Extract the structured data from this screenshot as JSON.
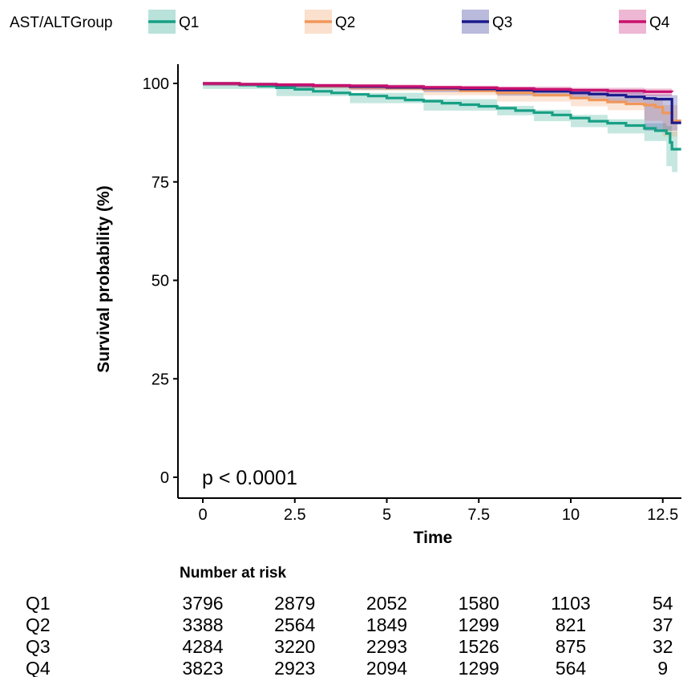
{
  "chart_data": {
    "type": "line",
    "ylabel": "Survival probability (%)",
    "xlabel": "Time",
    "xlim": [
      -0.6,
      13.0
    ],
    "ylim": [
      -5,
      105
    ],
    "x_ticks": [
      0,
      2.5,
      5,
      7.5,
      10,
      12.5
    ],
    "x_tick_labels": [
      "0",
      "2.5",
      "5",
      "7.5",
      "10",
      "12.5"
    ],
    "y_ticks": [
      0,
      25,
      50,
      75,
      100
    ],
    "y_tick_labels": [
      "0",
      "25",
      "50",
      "75",
      "100"
    ],
    "legend": {
      "title": "AST/ALTGroup",
      "position": "top",
      "entries": [
        "Q1",
        "Q2",
        "Q3",
        "Q4"
      ]
    },
    "annotation": "p < 0.0001",
    "series": [
      {
        "name": "Q1",
        "color": "#17a085",
        "points": [
          [
            0,
            100
          ],
          [
            1,
            99.6
          ],
          [
            1.5,
            99.3
          ],
          [
            2,
            98.9
          ],
          [
            2.5,
            98.5
          ],
          [
            3,
            98.0
          ],
          [
            3.5,
            97.6
          ],
          [
            4,
            97.2
          ],
          [
            4.5,
            96.8
          ],
          [
            5,
            96.3
          ],
          [
            5.5,
            95.8
          ],
          [
            6,
            95.5
          ],
          [
            6.5,
            95.0
          ],
          [
            7,
            94.6
          ],
          [
            7.5,
            94.2
          ],
          [
            8,
            93.7
          ],
          [
            8.5,
            93.1
          ],
          [
            9,
            92.6
          ],
          [
            9.5,
            92.0
          ],
          [
            10,
            91.2
          ],
          [
            10.5,
            90.4
          ],
          [
            11,
            89.9
          ],
          [
            11.5,
            89.3
          ],
          [
            12,
            88.6
          ],
          [
            12.3,
            88.0
          ],
          [
            12.6,
            87.3
          ],
          [
            12.7,
            85.0
          ],
          [
            12.75,
            83.3
          ],
          [
            13.0,
            83.3
          ]
        ],
        "ci": [
          [
            0,
            100,
            100
          ],
          [
            2,
            99.2,
            98.6
          ],
          [
            4,
            97.6,
            96.8
          ],
          [
            6,
            96.0,
            95.0
          ],
          [
            8,
            94.3,
            93.1
          ],
          [
            9,
            93.3,
            91.9
          ],
          [
            10,
            92.0,
            90.4
          ],
          [
            11,
            90.9,
            88.9
          ],
          [
            12,
            89.9,
            87.3
          ],
          [
            12.6,
            89.2,
            85.4
          ],
          [
            12.75,
            87.8,
            79.0
          ],
          [
            12.9,
            87.8,
            77.5
          ]
        ]
      },
      {
        "name": "Q2",
        "color": "#f0975a",
        "points": [
          [
            0,
            100
          ],
          [
            1,
            99.8
          ],
          [
            2,
            99.6
          ],
          [
            3,
            99.3
          ],
          [
            4,
            99.0
          ],
          [
            5,
            98.8
          ],
          [
            6,
            98.5
          ],
          [
            7,
            98.1
          ],
          [
            8,
            97.6
          ],
          [
            9,
            97.0
          ],
          [
            10,
            96.3
          ],
          [
            10.5,
            95.8
          ],
          [
            11,
            95.3
          ],
          [
            11.5,
            94.8
          ],
          [
            12,
            94.5
          ],
          [
            12.3,
            94.0
          ],
          [
            12.5,
            92.5
          ],
          [
            12.75,
            90.5
          ],
          [
            13.0,
            90.5
          ]
        ],
        "ci": [
          [
            0,
            100,
            100
          ],
          [
            2,
            99.8,
            99.4
          ],
          [
            4,
            99.3,
            98.7
          ],
          [
            6,
            98.9,
            98.1
          ],
          [
            8,
            98.2,
            97.0
          ],
          [
            10,
            97.2,
            95.4
          ],
          [
            11,
            96.4,
            94.2
          ],
          [
            12,
            95.8,
            93.2
          ],
          [
            12.5,
            94.5,
            90.5
          ],
          [
            12.75,
            94.5,
            86.5
          ],
          [
            12.9,
            94.5,
            86.5
          ]
        ]
      },
      {
        "name": "Q3",
        "color": "#1a1a8c",
        "points": [
          [
            0,
            100
          ],
          [
            1,
            99.8
          ],
          [
            2,
            99.6
          ],
          [
            3,
            99.4
          ],
          [
            4,
            99.2
          ],
          [
            5,
            99.0
          ],
          [
            6,
            98.8
          ],
          [
            7,
            98.6
          ],
          [
            8,
            98.3
          ],
          [
            9,
            98.0
          ],
          [
            10,
            97.6
          ],
          [
            10.5,
            97.3
          ],
          [
            11,
            97.0
          ],
          [
            11.5,
            96.6
          ],
          [
            12,
            96.2
          ],
          [
            12.3,
            96.0
          ],
          [
            12.75,
            90.0
          ],
          [
            13.0,
            90.0
          ]
        ],
        "ci": [
          [
            0,
            100,
            100
          ],
          [
            2,
            99.8,
            99.4
          ],
          [
            4,
            99.5,
            98.9
          ],
          [
            6,
            99.2,
            98.4
          ],
          [
            8,
            98.8,
            97.8
          ],
          [
            10,
            98.3,
            96.9
          ],
          [
            11,
            97.8,
            96.2
          ],
          [
            12,
            97.2,
            95.2
          ],
          [
            12.75,
            97.0,
            88.0
          ],
          [
            12.9,
            97.0,
            88.0
          ]
        ]
      },
      {
        "name": "Q4",
        "color": "#c8106e",
        "points": [
          [
            0,
            100
          ],
          [
            1,
            99.8
          ],
          [
            2,
            99.7
          ],
          [
            3,
            99.5
          ],
          [
            4,
            99.4
          ],
          [
            5,
            99.2
          ],
          [
            6,
            99.0
          ],
          [
            7,
            98.9
          ],
          [
            8,
            98.7
          ],
          [
            9,
            98.5
          ],
          [
            10,
            98.3
          ],
          [
            11,
            98.1
          ],
          [
            12,
            97.9
          ],
          [
            12.75,
            97.8
          ]
        ],
        "ci": [
          [
            0,
            100,
            100
          ],
          [
            2,
            99.9,
            99.5
          ],
          [
            4,
            99.7,
            99.1
          ],
          [
            6,
            99.4,
            98.6
          ],
          [
            8,
            99.2,
            98.2
          ],
          [
            10,
            98.9,
            97.7
          ],
          [
            12,
            98.7,
            97.1
          ],
          [
            12.75,
            98.7,
            96.8
          ]
        ]
      }
    ],
    "risk_table": {
      "title": "Number at risk",
      "rows": [
        {
          "group": "Q1",
          "values": [
            "3796",
            "2879",
            "2052",
            "1580",
            "1103",
            "54"
          ]
        },
        {
          "group": "Q2",
          "values": [
            "3388",
            "2564",
            "1849",
            "1299",
            "821",
            "37"
          ]
        },
        {
          "group": "Q3",
          "values": [
            "4284",
            "3220",
            "2293",
            "1526",
            "875",
            "32"
          ]
        },
        {
          "group": "Q4",
          "values": [
            "3823",
            "2923",
            "2094",
            "1299",
            "564",
            "9"
          ]
        }
      ]
    }
  }
}
